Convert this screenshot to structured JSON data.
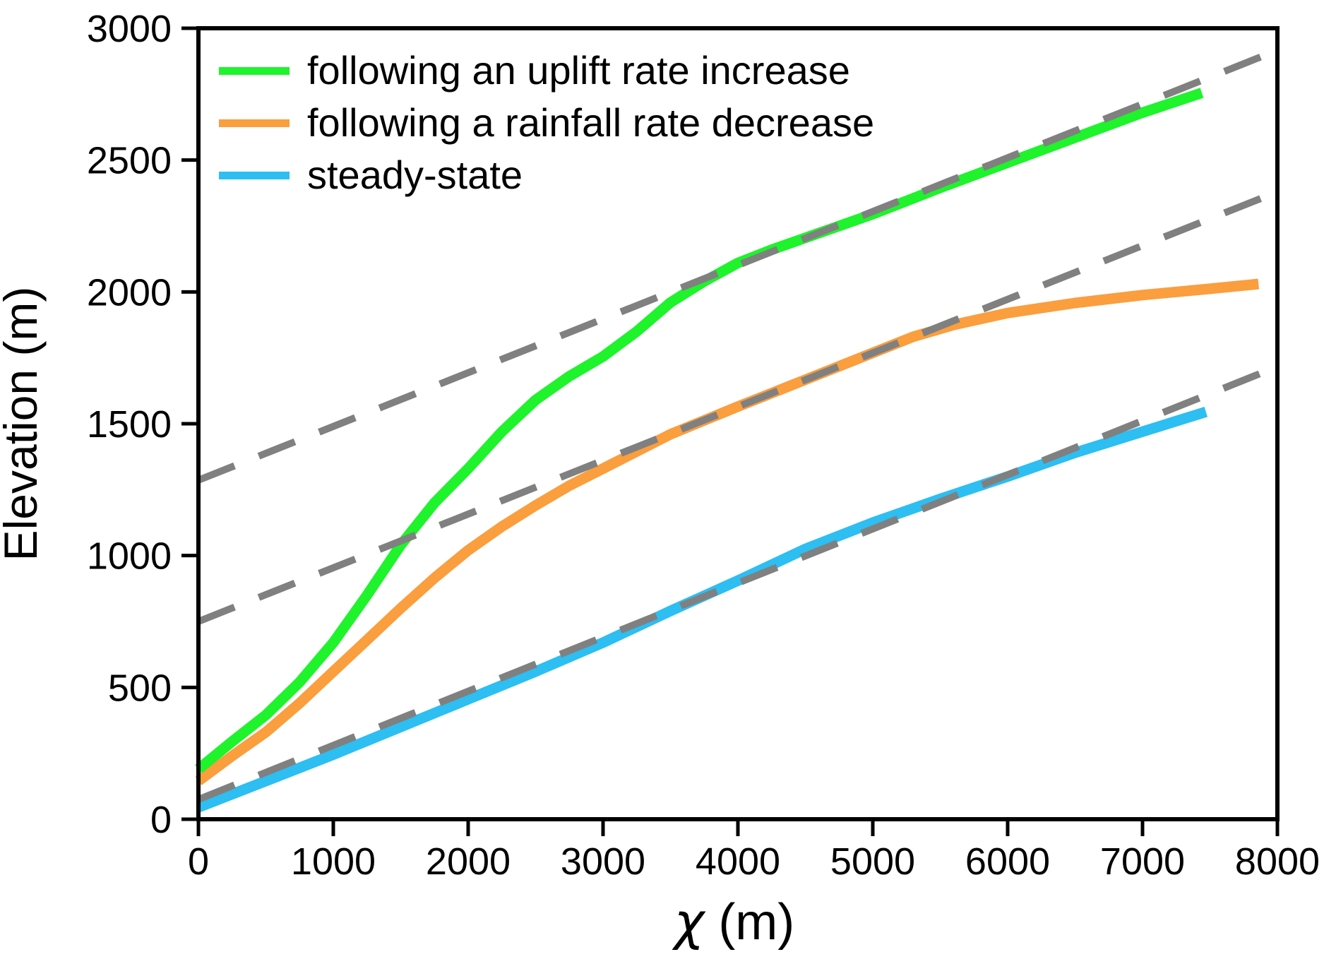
{
  "figure": {
    "background": "#ffffff",
    "frame_color": "#000000",
    "dashed_guide_color": "#808080"
  },
  "legend": {
    "position": "upper left",
    "items": [
      {
        "label": "following an uplift rate increase",
        "color": "#1ef32c"
      },
      {
        "label": "following a rainfall rate decrease",
        "color": "#fa9e3e"
      },
      {
        "label": "steady-state",
        "color": "#2dbef2"
      }
    ]
  },
  "axes": {
    "x": {
      "label_symbol": "χ",
      "label_unit": " (m)",
      "min": 0,
      "max": 8000,
      "ticks": [
        0,
        1000,
        2000,
        3000,
        4000,
        5000,
        6000,
        7000,
        8000
      ]
    },
    "y": {
      "label": "Elevation (m)",
      "min": 0,
      "max": 3000,
      "ticks": [
        0,
        500,
        1000,
        1500,
        2000,
        2500,
        3000
      ]
    }
  },
  "chart_data": {
    "type": "line",
    "title": "",
    "xlabel": "χ (m)",
    "ylabel": "Elevation (m)",
    "xlim": [
      0,
      8000
    ],
    "ylim": [
      0,
      3000
    ],
    "grid": false,
    "legend_position": "upper left",
    "series": [
      {
        "name": "steady-state",
        "color": "#2dbef2",
        "width": 15,
        "points": [
          [
            0,
            45
          ],
          [
            500,
            145
          ],
          [
            1000,
            245
          ],
          [
            1500,
            350
          ],
          [
            2000,
            455
          ],
          [
            2500,
            560
          ],
          [
            3000,
            670
          ],
          [
            3500,
            790
          ],
          [
            4000,
            905
          ],
          [
            4500,
            1025
          ],
          [
            5000,
            1125
          ],
          [
            5500,
            1215
          ],
          [
            6000,
            1300
          ],
          [
            6500,
            1390
          ],
          [
            7000,
            1470
          ],
          [
            7470,
            1545
          ]
        ]
      },
      {
        "name": "following a rainfall rate decrease",
        "color": "#fa9e3e",
        "width": 15,
        "points": [
          [
            0,
            145
          ],
          [
            250,
            240
          ],
          [
            500,
            330
          ],
          [
            750,
            440
          ],
          [
            1000,
            560
          ],
          [
            1250,
            680
          ],
          [
            1500,
            800
          ],
          [
            1750,
            915
          ],
          [
            2000,
            1020
          ],
          [
            2250,
            1110
          ],
          [
            2500,
            1190
          ],
          [
            2750,
            1265
          ],
          [
            3000,
            1330
          ],
          [
            3500,
            1460
          ],
          [
            4000,
            1565
          ],
          [
            4500,
            1667
          ],
          [
            5000,
            1769
          ],
          [
            5300,
            1830
          ],
          [
            5600,
            1875
          ],
          [
            6000,
            1920
          ],
          [
            6500,
            1958
          ],
          [
            7000,
            1988
          ],
          [
            7500,
            2012
          ],
          [
            7860,
            2030
          ]
        ]
      },
      {
        "name": "following an uplift rate increase",
        "color": "#1ef32c",
        "width": 15,
        "points": [
          [
            0,
            190
          ],
          [
            250,
            295
          ],
          [
            500,
            395
          ],
          [
            750,
            520
          ],
          [
            1000,
            670
          ],
          [
            1250,
            850
          ],
          [
            1500,
            1040
          ],
          [
            1750,
            1200
          ],
          [
            2000,
            1330
          ],
          [
            2250,
            1470
          ],
          [
            2500,
            1590
          ],
          [
            2750,
            1680
          ],
          [
            3000,
            1755
          ],
          [
            3250,
            1850
          ],
          [
            3500,
            1960
          ],
          [
            3750,
            2040
          ],
          [
            4000,
            2110
          ],
          [
            4250,
            2160
          ],
          [
            4500,
            2205
          ],
          [
            5000,
            2295
          ],
          [
            5500,
            2395
          ],
          [
            6000,
            2490
          ],
          [
            6500,
            2585
          ],
          [
            7000,
            2680
          ],
          [
            7440,
            2755
          ]
        ]
      }
    ],
    "reference_lines": [
      {
        "name": "upper-dashed-guide",
        "color": "#808080",
        "style": "dashed",
        "width": 10,
        "points": [
          [
            0,
            1286
          ],
          [
            7920,
            2900
          ]
        ]
      },
      {
        "name": "middle-dashed-guide",
        "color": "#808080",
        "style": "dashed",
        "width": 10,
        "points": [
          [
            0,
            750
          ],
          [
            7920,
            2363
          ]
        ]
      },
      {
        "name": "lower-dashed-guide",
        "color": "#808080",
        "style": "dashed",
        "width": 10,
        "points": [
          [
            0,
            75
          ],
          [
            7920,
            1700
          ]
        ]
      }
    ]
  }
}
